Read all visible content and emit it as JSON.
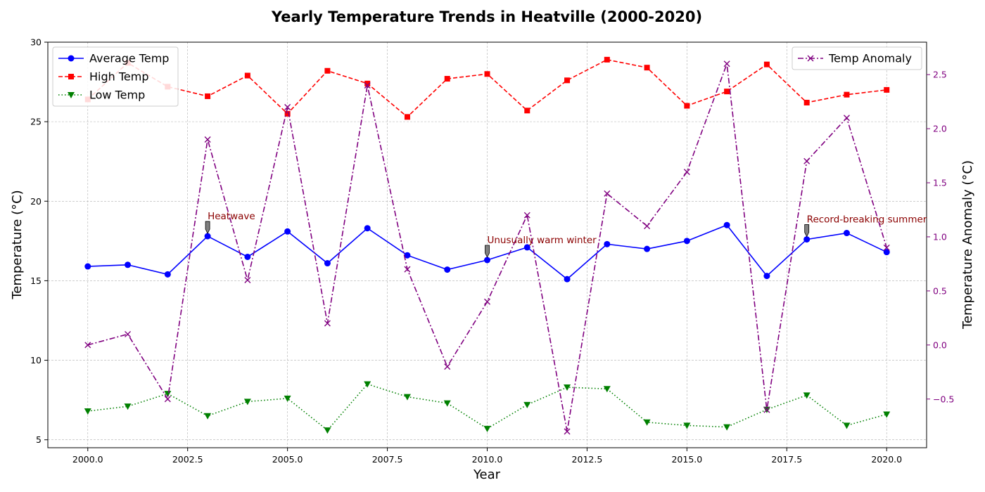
{
  "chart_data": {
    "type": "line",
    "title": "Yearly Temperature Trends in Heatville (2000-2020)",
    "xlabel": "Year",
    "ylabel": "Temperature (°C)",
    "y2label": "Temperature Anomaly (°C)",
    "xlim": [
      1999.0,
      2021.0
    ],
    "ylim": [
      4.5,
      30.0
    ],
    "y2lim": [
      -0.95,
      2.8
    ],
    "x_ticks": [
      2000.0,
      2002.5,
      2005.0,
      2007.5,
      2010.0,
      2012.5,
      2015.0,
      2017.5,
      2020.0
    ],
    "x_tick_labels": [
      "2000.0",
      "2002.5",
      "2005.0",
      "2007.5",
      "2010.0",
      "2012.5",
      "2015.0",
      "2017.5",
      "2020.0"
    ],
    "y_ticks": [
      5,
      10,
      15,
      20,
      25,
      30
    ],
    "y_tick_labels": [
      "5",
      "10",
      "15",
      "20",
      "25",
      "30"
    ],
    "y2_ticks": [
      -0.5,
      0.0,
      0.5,
      1.0,
      1.5,
      2.0,
      2.5
    ],
    "y2_tick_labels": [
      "−0.5",
      "0.0",
      "0.5",
      "1.0",
      "1.5",
      "2.0",
      "2.5"
    ],
    "grid": true,
    "x": [
      2000,
      2001,
      2002,
      2003,
      2004,
      2005,
      2006,
      2007,
      2008,
      2009,
      2010,
      2011,
      2012,
      2013,
      2014,
      2015,
      2016,
      2017,
      2018,
      2019,
      2020
    ],
    "series": [
      {
        "name": "Average Temp",
        "axis": "left",
        "color": "#0000ff",
        "marker": "circle",
        "dash": "solid",
        "values": [
          15.9,
          16.0,
          15.4,
          17.8,
          16.5,
          18.1,
          16.1,
          18.3,
          16.6,
          15.7,
          16.3,
          17.1,
          15.1,
          17.3,
          17.0,
          17.5,
          18.5,
          15.3,
          17.6,
          18.0,
          16.8
        ]
      },
      {
        "name": "High Temp",
        "axis": "left",
        "color": "#ff0000",
        "marker": "square",
        "dash": "dashed",
        "values": [
          26.4,
          28.7,
          27.2,
          26.6,
          27.9,
          25.5,
          28.2,
          27.4,
          25.3,
          27.7,
          28.0,
          25.7,
          27.6,
          28.9,
          28.4,
          26.0,
          26.9,
          28.6,
          26.2,
          26.7,
          27.0
        ]
      },
      {
        "name": "Low Temp",
        "axis": "left",
        "color": "#008000",
        "marker": "triangle-down",
        "dash": "dotted",
        "values": [
          6.8,
          7.1,
          7.9,
          6.5,
          7.4,
          7.6,
          5.6,
          8.5,
          7.7,
          7.3,
          5.7,
          7.2,
          8.3,
          8.2,
          6.1,
          5.9,
          5.8,
          6.9,
          7.8,
          5.9,
          6.6
        ]
      },
      {
        "name": "Temp Anomaly",
        "axis": "right",
        "color": "#800080",
        "marker": "x",
        "dash": "dashdot",
        "values": [
          0.0,
          0.1,
          -0.5,
          1.9,
          0.6,
          2.2,
          0.2,
          2.4,
          0.7,
          -0.2,
          0.4,
          1.2,
          -0.8,
          1.4,
          1.1,
          1.6,
          2.6,
          -0.6,
          1.7,
          2.1,
          0.9
        ]
      }
    ],
    "legend_left": {
      "placement": "top-left",
      "entries": [
        "Average Temp",
        "High Temp",
        "Low Temp"
      ]
    },
    "legend_right": {
      "placement": "top-right",
      "entries": [
        "Temp Anomaly"
      ]
    },
    "annotations": [
      {
        "text": "Heatwave",
        "x": 2003,
        "y": 17.8
      },
      {
        "text": "Unusually warm winter",
        "x": 2010,
        "y": 16.3
      },
      {
        "text": "Record-breaking summer",
        "x": 2018,
        "y": 17.6
      }
    ]
  },
  "colors": {
    "axis_right": "#800080",
    "annotation_text": "#8b0000",
    "grid": "#b0b0b0"
  }
}
